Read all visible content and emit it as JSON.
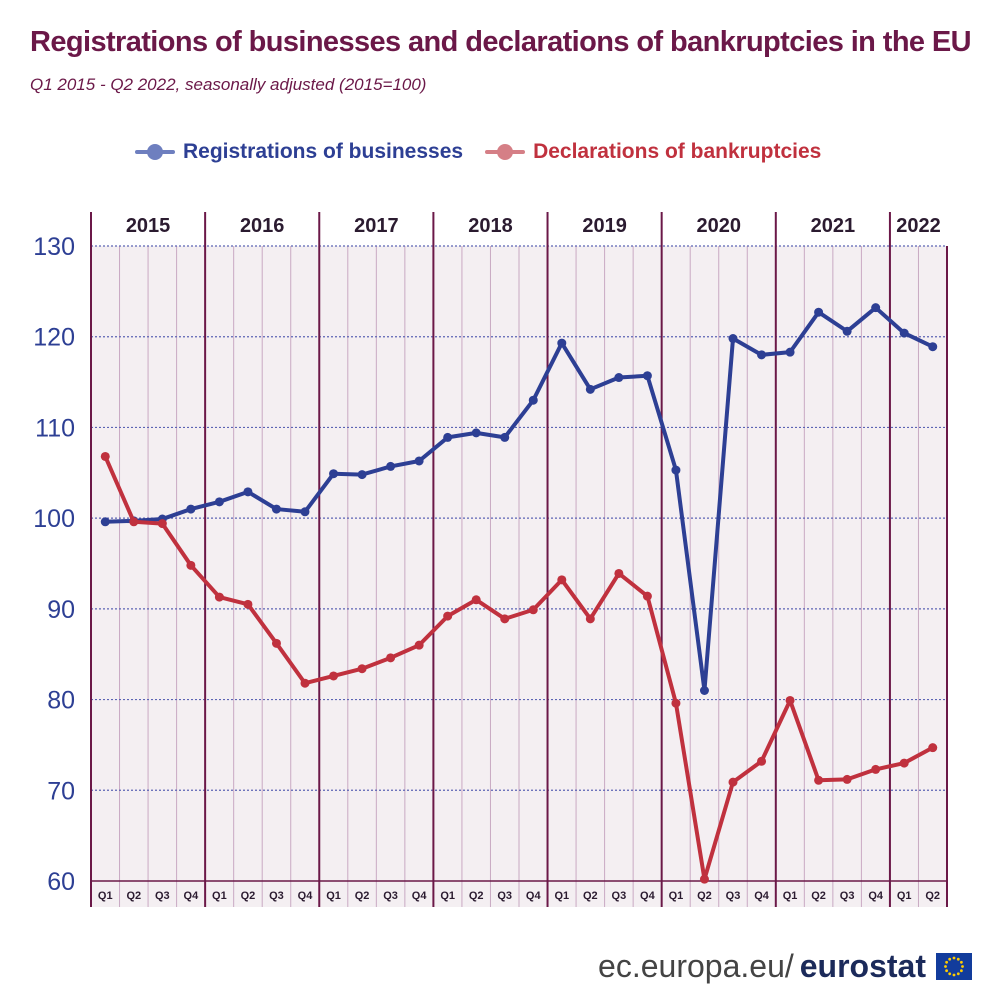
{
  "title": "Registrations of businesses and declarations of bankruptcies in the EU",
  "subtitle": "Q1 2015 - Q2 2022, seasonally adjusted (2015=100)",
  "footer": {
    "url": "ec.europa.eu/",
    "brand": "eurostat"
  },
  "colors": {
    "registrations": "#2d3f94",
    "bankruptcies": "#c0313e",
    "title": "#6b1848",
    "year_line": "#6b1848",
    "quarter_line": "#c9a9c3",
    "grid": "#5c64b4"
  },
  "chart_data": {
    "type": "line",
    "title": "Registrations of businesses and declarations of bankruptcies in the EU",
    "subtitle": "Q1 2015 - Q2 2022, seasonally adjusted (2015=100)",
    "years": [
      "2015",
      "2016",
      "2017",
      "2018",
      "2019",
      "2020",
      "2021",
      "2022"
    ],
    "quarter_labels": [
      "Q1",
      "Q2",
      "Q3",
      "Q4",
      "Q1",
      "Q2",
      "Q3",
      "Q4",
      "Q1",
      "Q2",
      "Q3",
      "Q4",
      "Q1",
      "Q2",
      "Q3",
      "Q4",
      "Q1",
      "Q2",
      "Q3",
      "Q4",
      "Q1",
      "Q2",
      "Q3",
      "Q4",
      "Q1",
      "Q2",
      "Q3",
      "Q4",
      "Q1",
      "Q2"
    ],
    "ylim": [
      60,
      130
    ],
    "yticks": [
      60,
      70,
      80,
      90,
      100,
      110,
      120,
      130
    ],
    "grid": true,
    "legend_position": "top",
    "series": [
      {
        "name": "Registrations of businesses",
        "values": [
          99.6,
          99.7,
          99.9,
          101.0,
          101.8,
          102.9,
          101.0,
          100.7,
          104.9,
          104.8,
          105.7,
          106.3,
          108.9,
          109.4,
          108.9,
          113.0,
          119.3,
          114.2,
          115.5,
          115.7,
          105.3,
          81.0,
          119.8,
          118.0,
          118.3,
          122.7,
          120.6,
          123.2,
          120.4,
          118.9
        ]
      },
      {
        "name": "Declarations of bankruptcies",
        "values": [
          106.8,
          99.6,
          99.4,
          94.8,
          91.3,
          90.5,
          86.2,
          81.8,
          82.6,
          83.4,
          84.6,
          86.0,
          89.2,
          91.0,
          88.9,
          89.9,
          93.2,
          88.9,
          93.9,
          91.4,
          79.6,
          60.2,
          70.9,
          73.2,
          79.9,
          71.1,
          71.2,
          72.3,
          73.0,
          74.7
        ]
      }
    ]
  }
}
